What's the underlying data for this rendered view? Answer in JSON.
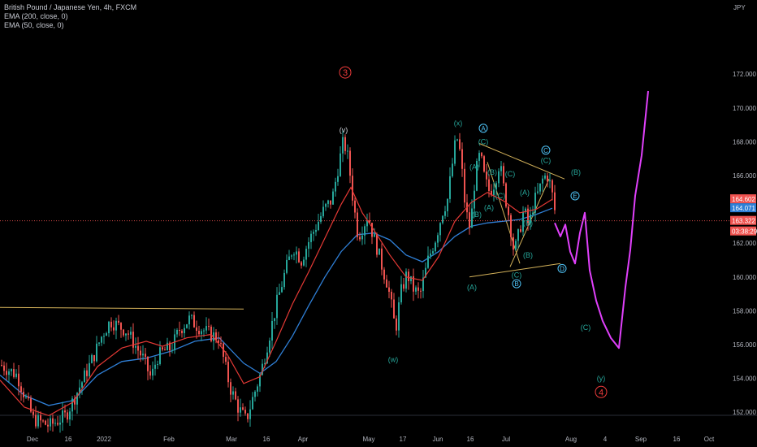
{
  "header": {
    "symbol_line": "British Pound / Japanese Yen, 4h, FXCM",
    "indicator_1": "EMA (200, close, 0)",
    "indicator_2": "EMA (50, close, 0)",
    "currency": "JPY"
  },
  "colors": {
    "background": "#000000",
    "up": "#26a69a",
    "down": "#ef5350",
    "ema200": "#2f7fd6",
    "ema50": "#e53935",
    "trendline": "#d4b25a",
    "projection": "#e040fb",
    "wave_cyan": "#4fc3f7",
    "wave_green": "#26a69a",
    "wave_red": "#ef3b3b"
  },
  "chart_data": {
    "type": "candlestick",
    "ylim": [
      150.5,
      174.0
    ],
    "y_ticks": [
      "172.000",
      "170.000",
      "168.000",
      "166.000",
      "164.000",
      "162.000",
      "160.000",
      "158.000",
      "156.000",
      "154.000",
      "152.000"
    ],
    "x_ticks": [
      "Dec",
      "16",
      "2022",
      "Feb",
      "Mar",
      "16",
      "Apr",
      "May",
      "17",
      "Jun",
      "16",
      "Jul",
      "Aug",
      "4",
      "Sep",
      "16",
      "Oct"
    ],
    "price_labels": [
      {
        "value": 164.602,
        "text": "164.602",
        "color": "#ef5350"
      },
      {
        "value": 164.071,
        "text": "164.071",
        "color": "#2f7fd6"
      },
      {
        "value": 163.322,
        "text": "163.322",
        "color": "#ef5350"
      },
      {
        "value": 162.7,
        "text": "03:38:29",
        "color": "#ef5350"
      }
    ],
    "current_price": 163.322,
    "price_path": [
      [
        0,
        154.8
      ],
      [
        20,
        154.2
      ],
      [
        40,
        151.6
      ],
      [
        60,
        151.2
      ],
      [
        80,
        151.8
      ],
      [
        100,
        153.8
      ],
      [
        115,
        155.4
      ],
      [
        125,
        156.6
      ],
      [
        135,
        157.4
      ],
      [
        145,
        157.1
      ],
      [
        155,
        156.8
      ],
      [
        165,
        156.0
      ],
      [
        175,
        155.2
      ],
      [
        185,
        154.0
      ],
      [
        192,
        155.2
      ],
      [
        200,
        155.6
      ],
      [
        210,
        155.8
      ],
      [
        220,
        156.9
      ],
      [
        232,
        157.5
      ],
      [
        245,
        157.0
      ],
      [
        258,
        156.6
      ],
      [
        268,
        156.4
      ],
      [
        275,
        155.0
      ],
      [
        282,
        153.5
      ],
      [
        292,
        152.3
      ],
      [
        302,
        151.5
      ],
      [
        310,
        152.8
      ],
      [
        320,
        154.3
      ],
      [
        330,
        156.4
      ],
      [
        340,
        158.5
      ],
      [
        350,
        160.3
      ],
      [
        360,
        161.8
      ],
      [
        370,
        161.0
      ],
      [
        378,
        162.0
      ],
      [
        388,
        163.0
      ],
      [
        398,
        164.0
      ],
      [
        408,
        164.6
      ],
      [
        415,
        166.4
      ],
      [
        422,
        168.1
      ],
      [
        428,
        166.9
      ],
      [
        434,
        164.4
      ],
      [
        440,
        162.4
      ],
      [
        446,
        163.0
      ],
      [
        452,
        163.7
      ],
      [
        458,
        162.5
      ],
      [
        464,
        161.6
      ],
      [
        470,
        160.5
      ],
      [
        476,
        159.6
      ],
      [
        482,
        158.0
      ],
      [
        486,
        156.8
      ],
      [
        492,
        159.0
      ],
      [
        500,
        160.2
      ],
      [
        508,
        159.3
      ],
      [
        516,
        158.9
      ],
      [
        526,
        161.0
      ],
      [
        536,
        162.4
      ],
      [
        544,
        163.9
      ],
      [
        550,
        164.6
      ],
      [
        556,
        166.7
      ],
      [
        561,
        168.4
      ],
      [
        566,
        167.2
      ],
      [
        572,
        164.0
      ],
      [
        578,
        162.8
      ],
      [
        584,
        166.0
      ],
      [
        590,
        167.3
      ],
      [
        596,
        165.7
      ],
      [
        602,
        165.0
      ],
      [
        608,
        165.6
      ],
      [
        614,
        166.8
      ],
      [
        620,
        165.0
      ],
      [
        626,
        163.5
      ],
      [
        632,
        161.4
      ],
      [
        638,
        162.6
      ],
      [
        644,
        164.0
      ],
      [
        650,
        163.0
      ],
      [
        656,
        164.4
      ],
      [
        662,
        165.0
      ],
      [
        668,
        165.9
      ],
      [
        674,
        166.0
      ],
      [
        680,
        164.6
      ],
      [
        684,
        163.3
      ]
    ],
    "ema200_path": [
      [
        0,
        154.2
      ],
      [
        30,
        153.0
      ],
      [
        60,
        152.4
      ],
      [
        90,
        152.7
      ],
      [
        120,
        154.2
      ],
      [
        150,
        155.0
      ],
      [
        180,
        155.2
      ],
      [
        210,
        155.6
      ],
      [
        240,
        156.2
      ],
      [
        270,
        156.4
      ],
      [
        300,
        154.9
      ],
      [
        320,
        154.3
      ],
      [
        340,
        155.0
      ],
      [
        360,
        156.5
      ],
      [
        380,
        158.3
      ],
      [
        400,
        160.0
      ],
      [
        420,
        161.5
      ],
      [
        440,
        162.5
      ],
      [
        460,
        162.6
      ],
      [
        480,
        162.2
      ],
      [
        500,
        161.3
      ],
      [
        520,
        160.9
      ],
      [
        540,
        161.5
      ],
      [
        560,
        162.4
      ],
      [
        580,
        163.0
      ],
      [
        600,
        163.2
      ],
      [
        620,
        163.3
      ],
      [
        640,
        163.4
      ],
      [
        660,
        163.7
      ],
      [
        680,
        164.07
      ]
    ],
    "ema50_path": [
      [
        0,
        153.9
      ],
      [
        30,
        152.3
      ],
      [
        60,
        151.8
      ],
      [
        90,
        152.6
      ],
      [
        120,
        154.7
      ],
      [
        150,
        155.8
      ],
      [
        180,
        156.2
      ],
      [
        200,
        155.9
      ],
      [
        230,
        156.4
      ],
      [
        260,
        156.6
      ],
      [
        280,
        155.4
      ],
      [
        300,
        153.7
      ],
      [
        320,
        154.1
      ],
      [
        340,
        156.2
      ],
      [
        360,
        158.4
      ],
      [
        380,
        160.3
      ],
      [
        400,
        162.3
      ],
      [
        420,
        164.3
      ],
      [
        432,
        165.3
      ],
      [
        446,
        163.8
      ],
      [
        460,
        162.8
      ],
      [
        480,
        161.3
      ],
      [
        500,
        160.0
      ],
      [
        520,
        159.8
      ],
      [
        540,
        161.2
      ],
      [
        560,
        163.3
      ],
      [
        580,
        164.4
      ],
      [
        600,
        165.0
      ],
      [
        620,
        164.5
      ],
      [
        640,
        163.8
      ],
      [
        660,
        164.0
      ],
      [
        680,
        164.6
      ]
    ],
    "projection_path": [
      [
        683,
        163.2
      ],
      [
        690,
        162.4
      ],
      [
        696,
        163.1
      ],
      [
        702,
        161.5
      ],
      [
        708,
        160.8
      ],
      [
        714,
        162.6
      ],
      [
        720,
        163.8
      ],
      [
        726,
        160.4
      ],
      [
        734,
        158.6
      ],
      [
        742,
        157.4
      ],
      [
        752,
        156.4
      ],
      [
        762,
        155.8
      ],
      [
        770,
        159.4
      ],
      [
        776,
        161.6
      ],
      [
        782,
        164.8
      ],
      [
        790,
        167.2
      ],
      [
        798,
        171.0
      ]
    ],
    "trendlines": [
      {
        "from": [
          0,
          158.2
        ],
        "to": [
          300,
          158.1
        ]
      },
      {
        "from": [
          590,
          167.9
        ],
        "to": [
          695,
          165.8
        ]
      },
      {
        "from": [
          578,
          160.0
        ],
        "to": [
          690,
          160.8
        ]
      },
      {
        "from": [
          600,
          166.8
        ],
        "to": [
          640,
          160.8
        ]
      },
      {
        "from": [
          628,
          160.6
        ],
        "to": [
          676,
          165.8
        ]
      }
    ],
    "annotations": [
      {
        "text": "3",
        "x": 425,
        "y": 172.1,
        "color": "#ef3b3b",
        "circle": true
      },
      {
        "text": "(v)",
        "x": 423,
        "y": 168.7,
        "color": "#d1d4dc"
      },
      {
        "text": "(w)",
        "x": 484,
        "y": 155.1,
        "color": "#26a69a"
      },
      {
        "text": "(x)",
        "x": 564,
        "y": 169.1,
        "color": "#26a69a"
      },
      {
        "text": "A",
        "x": 595,
        "y": 168.8,
        "color": "#4fc3f7",
        "circle": true
      },
      {
        "text": "(C)",
        "x": 595,
        "y": 168.0,
        "color": "#26a69a"
      },
      {
        "text": "(A)",
        "x": 584,
        "y": 166.5,
        "color": "#26a69a"
      },
      {
        "text": "(B)",
        "x": 606,
        "y": 166.2,
        "color": "#26a69a"
      },
      {
        "text": "(C)",
        "x": 616,
        "y": 164.8,
        "color": "#26a69a"
      },
      {
        "text": "(B)",
        "x": 587,
        "y": 163.7,
        "color": "#26a69a"
      },
      {
        "text": "(A)",
        "x": 602,
        "y": 164.1,
        "color": "#26a69a"
      },
      {
        "text": "(A)",
        "x": 646,
        "y": 165.0,
        "color": "#26a69a"
      },
      {
        "text": "(C)",
        "x": 628,
        "y": 166.1,
        "color": "#26a69a"
      },
      {
        "text": "(C)",
        "x": 672,
        "y": 166.9,
        "color": "#26a69a"
      },
      {
        "text": "C",
        "x": 672,
        "y": 167.5,
        "color": "#4fc3f7",
        "circle": true
      },
      {
        "text": "(B)",
        "x": 650,
        "y": 163.2,
        "color": "#26a69a"
      },
      {
        "text": "(B)",
        "x": 650,
        "y": 161.3,
        "color": "#26a69a"
      },
      {
        "text": "(C)",
        "x": 636,
        "y": 160.1,
        "color": "#26a69a"
      },
      {
        "text": "B",
        "x": 636,
        "y": 159.6,
        "color": "#4fc3f7",
        "circle": true
      },
      {
        "text": "D",
        "x": 692,
        "y": 160.5,
        "color": "#4fc3f7",
        "circle": true
      },
      {
        "text": "(A)",
        "x": 581,
        "y": 159.4,
        "color": "#26a69a"
      },
      {
        "text": "(B)",
        "x": 709,
        "y": 166.2,
        "color": "#26a69a"
      },
      {
        "text": "E",
        "x": 708,
        "y": 164.8,
        "color": "#4fc3f7",
        "circle": true
      },
      {
        "text": "(C)",
        "x": 721,
        "y": 157.0,
        "color": "#26a69a"
      },
      {
        "text": "(y)",
        "x": 740,
        "y": 154.0,
        "color": "#26a69a"
      },
      {
        "text": "4",
        "x": 740,
        "y": 153.2,
        "color": "#ef3b3b",
        "circle": true
      }
    ]
  }
}
